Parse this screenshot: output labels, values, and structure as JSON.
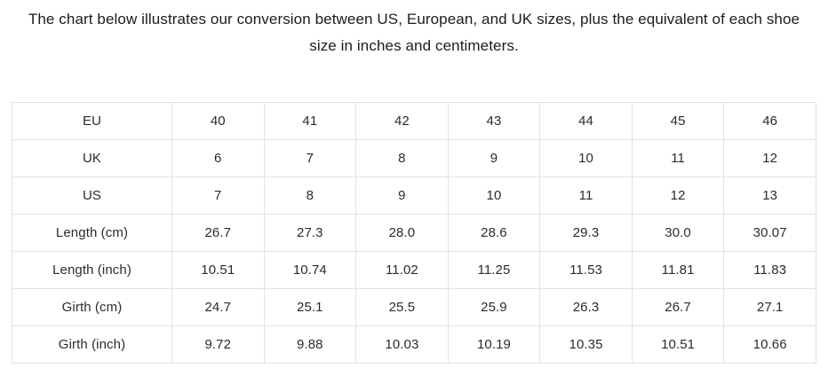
{
  "caption": "The chart below illustrates our conversion between US, European, and UK sizes, plus the equivalent of each shoe size in inches and centimeters.",
  "colors": {
    "table_border": "#e2e2e2",
    "text": "#2b2b2b",
    "background": "#ffffff"
  },
  "table": {
    "rows": [
      {
        "label": "EU",
        "values": [
          "40",
          "41",
          "42",
          "43",
          "44",
          "45",
          "46"
        ]
      },
      {
        "label": "UK",
        "values": [
          "6",
          "7",
          "8",
          "9",
          "10",
          "11",
          "12"
        ]
      },
      {
        "label": "US",
        "values": [
          "7",
          "8",
          "9",
          "10",
          "11",
          "12",
          "13"
        ]
      },
      {
        "label": "Length (cm)",
        "values": [
          "26.7",
          "27.3",
          "28.0",
          "28.6",
          "29.3",
          "30.0",
          "30.07"
        ]
      },
      {
        "label": "Length (inch)",
        "values": [
          "10.51",
          "10.74",
          "11.02",
          "11.25",
          "11.53",
          "11.81",
          "11.83"
        ]
      },
      {
        "label": "Girth (cm)",
        "values": [
          "24.7",
          "25.1",
          "25.5",
          "25.9",
          "26.3",
          "26.7",
          "27.1"
        ]
      },
      {
        "label": "Girth (inch)",
        "values": [
          "9.72",
          "9.88",
          "10.03",
          "10.19",
          "10.35",
          "10.51",
          "10.66"
        ]
      }
    ]
  },
  "chart_data": {
    "type": "table",
    "title": "The chart below illustrates our conversion between US, European, and UK sizes, plus the equivalent of each shoe size in inches and centimeters.",
    "row_headers": [
      "EU",
      "UK",
      "US",
      "Length (cm)",
      "Length (inch)",
      "Girth (cm)",
      "Girth (inch)"
    ],
    "rows": [
      [
        40,
        41,
        42,
        43,
        44,
        45,
        46
      ],
      [
        6,
        7,
        8,
        9,
        10,
        11,
        12
      ],
      [
        7,
        8,
        9,
        10,
        11,
        12,
        13
      ],
      [
        26.7,
        27.3,
        28.0,
        28.6,
        29.3,
        30.0,
        30.07
      ],
      [
        10.51,
        10.74,
        11.02,
        11.25,
        11.53,
        11.81,
        11.83
      ],
      [
        24.7,
        25.1,
        25.5,
        25.9,
        26.3,
        26.7,
        27.1
      ],
      [
        9.72,
        9.88,
        10.03,
        10.19,
        10.35,
        10.51,
        10.66
      ]
    ],
    "legend_position": "none",
    "grid": true
  }
}
